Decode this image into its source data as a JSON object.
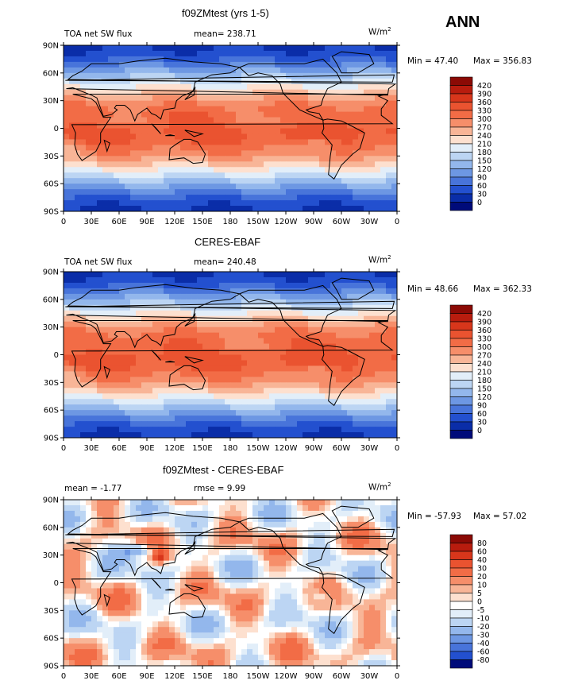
{
  "figure": {
    "season": "ANN"
  },
  "axes": {
    "lon_labels": [
      "0",
      "30E",
      "60E",
      "90E",
      "120E",
      "150E",
      "180",
      "150W",
      "120W",
      "90W",
      "60W",
      "30W",
      "0"
    ],
    "lat_labels": [
      "90N",
      "60N",
      "30N",
      "0",
      "30S",
      "60S",
      "90S"
    ]
  },
  "chart_data": [
    {
      "type": "heatmap",
      "title": "f09ZMtest (yrs 1-5)",
      "left_label": "TOA net SW flux",
      "mean_text": "mean= 238.71",
      "rmse_text": "",
      "units": "W/m",
      "units_exp": "2",
      "min_text": "Min =  47.40",
      "max_text": "Max = 356.83",
      "contour_levels": [
        "420",
        "390",
        "360",
        "330",
        "300",
        "270",
        "240",
        "210",
        "180",
        "150",
        "120",
        "90",
        "60",
        "30",
        "0"
      ],
      "colorbar_colors": [
        "#8b0a05",
        "#b81c0e",
        "#d8361b",
        "#ea5330",
        "#f26c46",
        "#f68e6a",
        "#f8b597",
        "#fde0cf",
        "#e2eef9",
        "#bcd5f3",
        "#93b7ec",
        "#6d97e3",
        "#4874da",
        "#2350cf",
        "#0a2da8",
        "#000b7a"
      ],
      "field_min": 47.4,
      "field_max": 356.83,
      "mean": 238.71
    },
    {
      "type": "heatmap",
      "title": "CERES-EBAF",
      "left_label": "TOA net SW flux",
      "mean_text": "mean= 240.48",
      "rmse_text": "",
      "units": "W/m",
      "units_exp": "2",
      "min_text": "Min =  48.66",
      "max_text": "Max = 362.33",
      "contour_levels": [
        "420",
        "390",
        "360",
        "330",
        "300",
        "270",
        "240",
        "210",
        "180",
        "150",
        "120",
        "90",
        "60",
        "30",
        "0"
      ],
      "colorbar_colors": [
        "#8b0a05",
        "#b81c0e",
        "#d8361b",
        "#ea5330",
        "#f26c46",
        "#f68e6a",
        "#f8b597",
        "#fde0cf",
        "#e2eef9",
        "#bcd5f3",
        "#93b7ec",
        "#6d97e3",
        "#4874da",
        "#2350cf",
        "#0a2da8",
        "#000b7a"
      ],
      "field_min": 48.66,
      "field_max": 362.33,
      "mean": 240.48
    },
    {
      "type": "heatmap",
      "title": "f09ZMtest - CERES-EBAF",
      "left_label": "mean =   -1.77",
      "mean_text": "",
      "rmse_text": "rmse =    9.99",
      "units": "W/m",
      "units_exp": "2",
      "min_text": "Min = -57.93",
      "max_text": "Max =  57.02",
      "contour_levels": [
        "80",
        "60",
        "40",
        "30",
        "20",
        "10",
        "5",
        "0",
        "-5",
        "-10",
        "-20",
        "-30",
        "-40",
        "-60",
        "-80"
      ],
      "colorbar_colors": [
        "#8b0a05",
        "#b81c0e",
        "#d8361b",
        "#ea5330",
        "#f26c46",
        "#f68e6a",
        "#f8b597",
        "#fde0cf",
        "#ffffff",
        "#e2eef9",
        "#bcd5f3",
        "#93b7ec",
        "#6d97e3",
        "#4874da",
        "#2350cf",
        "#000b7a"
      ],
      "field_min": -57.93,
      "field_max": 57.02,
      "mean": -1.77,
      "rmse": 9.99
    }
  ]
}
